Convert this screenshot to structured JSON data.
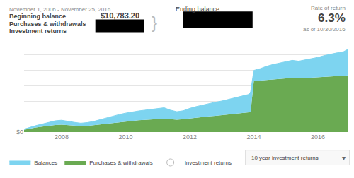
{
  "chart_data": {
    "type": "area",
    "x": [
      2006.83,
      2007.0,
      2007.2,
      2007.4,
      2007.6,
      2007.8,
      2008.0,
      2008.2,
      2008.4,
      2008.6,
      2008.8,
      2009.0,
      2009.2,
      2009.4,
      2009.6,
      2009.8,
      2010.0,
      2010.2,
      2010.4,
      2010.6,
      2010.8,
      2011.0,
      2011.2,
      2011.4,
      2011.6,
      2011.8,
      2012.0,
      2012.2,
      2012.4,
      2012.6,
      2012.8,
      2013.0,
      2013.2,
      2013.4,
      2013.6,
      2013.85,
      2013.9,
      2014.0,
      2014.2,
      2014.4,
      2014.6,
      2014.8,
      2015.0,
      2015.2,
      2015.4,
      2015.6,
      2015.8,
      2016.0,
      2016.2,
      2016.4,
      2016.6,
      2016.8,
      2016.95
    ],
    "series": [
      {
        "name": "Purchases & withdrawals",
        "color": "#6aaa52",
        "values": [
          0.02,
          0.03,
          0.038,
          0.046,
          0.054,
          0.06,
          0.062,
          0.057,
          0.053,
          0.05,
          0.052,
          0.058,
          0.065,
          0.072,
          0.079,
          0.085,
          0.09,
          0.095,
          0.099,
          0.103,
          0.107,
          0.11,
          0.113,
          0.108,
          0.104,
          0.108,
          0.115,
          0.12,
          0.126,
          0.132,
          0.137,
          0.142,
          0.148,
          0.155,
          0.16,
          0.166,
          0.17,
          0.43,
          0.435,
          0.44,
          0.444,
          0.448,
          0.452,
          0.455,
          0.452,
          0.455,
          0.458,
          0.461,
          0.465,
          0.468,
          0.471,
          0.474,
          0.478
        ]
      },
      {
        "name": "Balances",
        "color": "#7dd4f0",
        "values": [
          0.025,
          0.04,
          0.055,
          0.068,
          0.082,
          0.095,
          0.1,
          0.09,
          0.082,
          0.075,
          0.08,
          0.09,
          0.105,
          0.12,
          0.135,
          0.148,
          0.16,
          0.17,
          0.178,
          0.185,
          0.192,
          0.198,
          0.205,
          0.185,
          0.172,
          0.18,
          0.2,
          0.215,
          0.228,
          0.24,
          0.252,
          0.262,
          0.275,
          0.29,
          0.302,
          0.318,
          0.34,
          0.52,
          0.535,
          0.555,
          0.57,
          0.582,
          0.595,
          0.605,
          0.598,
          0.608,
          0.618,
          0.63,
          0.645,
          0.658,
          0.668,
          0.678,
          0.7
        ]
      }
    ],
    "stacked": false,
    "xlim": [
      2006.83,
      2016.95
    ],
    "xticks": [
      2008,
      2010,
      2012,
      2014,
      2016
    ],
    "ylim": [
      0,
      0.78
    ],
    "yticks": [
      {
        "value": 0,
        "label": "$0"
      }
    ],
    "grid": true,
    "legend": "bottom",
    "annotations": [
      "November 1, 2006 - November 25, 2016",
      "Beginning balance",
      "Purchases & withdrawals",
      "Investment returns",
      "$10,783.20",
      "}",
      "Ending balance",
      "Rate of return",
      "6.3%",
      "as of 10/30/2016",
      "Investment returns",
      "10 year investment returns",
      "▾"
    ]
  }
}
